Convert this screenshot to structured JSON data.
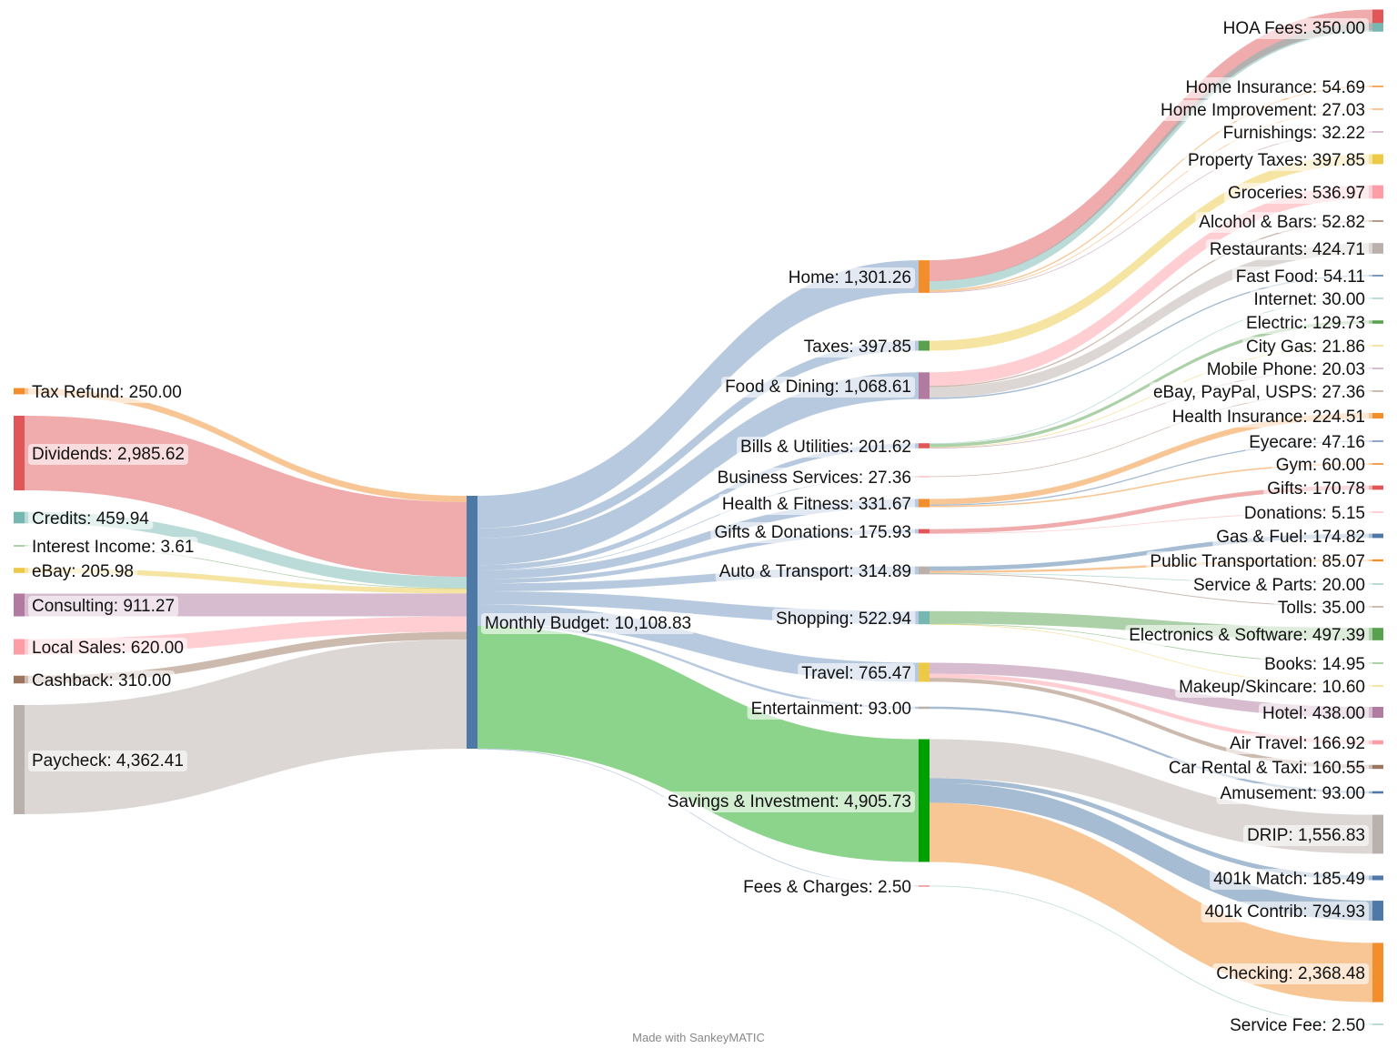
{
  "footer": {
    "credit": "Made with SankeyMATIC"
  },
  "flow_opacity": 0.5,
  "nodes": [
    {
      "id": "tax_refund",
      "name": "Tax Refund",
      "value": 250.0,
      "color": "#f28e2b",
      "col": 0
    },
    {
      "id": "dividends",
      "name": "Dividends",
      "value": 2985.62,
      "color": "#e15759",
      "col": 0
    },
    {
      "id": "credits",
      "name": "Credits",
      "value": 459.94,
      "color": "#76b7b2",
      "col": 0
    },
    {
      "id": "interest",
      "name": "Interest Income",
      "value": 3.61,
      "color": "#59a14f",
      "col": 0
    },
    {
      "id": "ebay",
      "name": "eBay",
      "value": 205.98,
      "color": "#edc948",
      "col": 0
    },
    {
      "id": "consulting",
      "name": "Consulting",
      "value": 911.27,
      "color": "#b07aa1",
      "col": 0
    },
    {
      "id": "local_sales",
      "name": "Local Sales",
      "value": 620.0,
      "color": "#ff9da7",
      "col": 0
    },
    {
      "id": "cashback",
      "name": "Cashback",
      "value": 310.0,
      "color": "#9c755f",
      "col": 0
    },
    {
      "id": "paycheck",
      "name": "Paycheck",
      "value": 4362.41,
      "color": "#bab0ac",
      "col": 0
    },
    {
      "id": "budget",
      "name": "Monthly Budget",
      "value": 10108.83,
      "color": "#4e79a7",
      "col": 1
    },
    {
      "id": "home",
      "name": "Home",
      "value": 1301.26,
      "color": "#f28e2b",
      "col": 2
    },
    {
      "id": "taxes",
      "name": "Taxes",
      "value": 397.85,
      "color": "#59a14f",
      "col": 2
    },
    {
      "id": "food",
      "name": "Food & Dining",
      "value": 1068.61,
      "color": "#b07aa1",
      "col": 2
    },
    {
      "id": "bills",
      "name": "Bills & Utilities",
      "value": 201.62,
      "color": "#e15759",
      "col": 2
    },
    {
      "id": "business",
      "name": "Business Services",
      "value": 27.36,
      "color": "#ff9da7",
      "col": 2
    },
    {
      "id": "health",
      "name": "Health & Fitness",
      "value": 331.67,
      "color": "#f28e2b",
      "col": 2
    },
    {
      "id": "gifts_don",
      "name": "Gifts & Donations",
      "value": 175.93,
      "color": "#e15759",
      "col": 2
    },
    {
      "id": "auto",
      "name": "Auto & Transport",
      "value": 314.89,
      "color": "#bab0ac",
      "col": 2
    },
    {
      "id": "shopping",
      "name": "Shopping",
      "value": 522.94,
      "color": "#76b7b2",
      "col": 2
    },
    {
      "id": "travel",
      "name": "Travel",
      "value": 765.47,
      "color": "#edc948",
      "col": 2
    },
    {
      "id": "entertainment",
      "name": "Entertainment",
      "value": 93.0,
      "color": "#bab0ac",
      "col": 2
    },
    {
      "id": "savings",
      "name": "Savings & Investment",
      "value": 4905.73,
      "color": "#00a000",
      "col": 2
    },
    {
      "id": "fees",
      "name": "Fees & Charges",
      "value": 2.5,
      "color": "#e15759",
      "col": 2
    },
    {
      "id": "home_top",
      "name": "",
      "value": 837.32,
      "color": "#e15759",
      "col": 3
    },
    {
      "id": "hoa",
      "name": "HOA Fees",
      "value": 350.0,
      "color": "#76b7b2",
      "col": 3
    },
    {
      "id": "home_ins",
      "name": "Home Insurance",
      "value": 54.69,
      "color": "#f28e2b",
      "col": 3
    },
    {
      "id": "home_impr",
      "name": "Home Improvement",
      "value": 27.03,
      "color": "#f28e2b",
      "col": 3
    },
    {
      "id": "furnishings",
      "name": "Furnishings",
      "value": 32.22,
      "color": "#b07aa1",
      "col": 3
    },
    {
      "id": "prop_tax",
      "name": "Property Taxes",
      "value": 397.85,
      "color": "#edc948",
      "col": 3
    },
    {
      "id": "groceries",
      "name": "Groceries",
      "value": 536.97,
      "color": "#ff9da7",
      "col": 3
    },
    {
      "id": "alcohol",
      "name": "Alcohol & Bars",
      "value": 52.82,
      "color": "#9c755f",
      "col": 3
    },
    {
      "id": "restaurants",
      "name": "Restaurants",
      "value": 424.71,
      "color": "#bab0ac",
      "col": 3
    },
    {
      "id": "fast_food",
      "name": "Fast Food",
      "value": 54.11,
      "color": "#4e79a7",
      "col": 3
    },
    {
      "id": "internet",
      "name": "Internet",
      "value": 30.0,
      "color": "#76b7b2",
      "col": 3
    },
    {
      "id": "electric",
      "name": "Electric",
      "value": 129.73,
      "color": "#59a14f",
      "col": 3
    },
    {
      "id": "city_gas",
      "name": "City Gas",
      "value": 21.86,
      "color": "#edc948",
      "col": 3
    },
    {
      "id": "mobile",
      "name": "Mobile Phone",
      "value": 20.03,
      "color": "#b07aa1",
      "col": 3
    },
    {
      "id": "ebay_paypal",
      "name": "eBay, PayPal, USPS",
      "value": 27.36,
      "color": "#9c755f",
      "col": 3
    },
    {
      "id": "health_ins",
      "name": "Health Insurance",
      "value": 224.51,
      "color": "#f28e2b",
      "col": 3
    },
    {
      "id": "eyecare",
      "name": "Eyecare",
      "value": 47.16,
      "color": "#4e79a7",
      "col": 3
    },
    {
      "id": "gym",
      "name": "Gym",
      "value": 60.0,
      "color": "#f28e2b",
      "col": 3
    },
    {
      "id": "gifts",
      "name": "Gifts",
      "value": 170.78,
      "color": "#e15759",
      "col": 3
    },
    {
      "id": "donations",
      "name": "Donations",
      "value": 5.15,
      "color": "#ff9da7",
      "col": 3
    },
    {
      "id": "gas_fuel",
      "name": "Gas & Fuel",
      "value": 174.82,
      "color": "#4e79a7",
      "col": 3
    },
    {
      "id": "public_trans",
      "name": "Public Transportation",
      "value": 85.07,
      "color": "#f28e2b",
      "col": 3
    },
    {
      "id": "service_parts",
      "name": "Service & Parts",
      "value": 20.0,
      "color": "#76b7b2",
      "col": 3
    },
    {
      "id": "tolls",
      "name": "Tolls",
      "value": 35.0,
      "color": "#9c755f",
      "col": 3
    },
    {
      "id": "electronics",
      "name": "Electronics & Software",
      "value": 497.39,
      "color": "#59a14f",
      "col": 3
    },
    {
      "id": "books",
      "name": "Books",
      "value": 14.95,
      "color": "#59a14f",
      "col": 3
    },
    {
      "id": "makeup",
      "name": "Makeup/Skincare",
      "value": 10.6,
      "color": "#edc948",
      "col": 3
    },
    {
      "id": "hotel",
      "name": "Hotel",
      "value": 438.0,
      "color": "#b07aa1",
      "col": 3
    },
    {
      "id": "air_travel",
      "name": "Air Travel",
      "value": 166.92,
      "color": "#ff9da7",
      "col": 3
    },
    {
      "id": "car_rental",
      "name": "Car Rental & Taxi",
      "value": 160.55,
      "color": "#9c755f",
      "col": 3
    },
    {
      "id": "amusement",
      "name": "Amusement",
      "value": 93.0,
      "color": "#4e79a7",
      "col": 3
    },
    {
      "id": "drip",
      "name": "DRIP",
      "value": 1556.83,
      "color": "#bab0ac",
      "col": 3
    },
    {
      "id": "k401_match",
      "name": "401k Match",
      "value": 185.49,
      "color": "#4e79a7",
      "col": 3
    },
    {
      "id": "k401_contrib",
      "name": "401k Contrib",
      "value": 794.93,
      "color": "#4e79a7",
      "col": 3
    },
    {
      "id": "checking",
      "name": "Checking",
      "value": 2368.48,
      "color": "#f28e2b",
      "col": 3
    },
    {
      "id": "service_fee",
      "name": "Service Fee",
      "value": 2.5,
      "color": "#76b7b2",
      "col": 3
    }
  ],
  "links": [
    [
      "tax_refund",
      "budget",
      250.0
    ],
    [
      "dividends",
      "budget",
      2985.62
    ],
    [
      "credits",
      "budget",
      459.94
    ],
    [
      "interest",
      "budget",
      3.61
    ],
    [
      "ebay",
      "budget",
      205.98
    ],
    [
      "consulting",
      "budget",
      911.27
    ],
    [
      "local_sales",
      "budget",
      620.0
    ],
    [
      "cashback",
      "budget",
      310.0
    ],
    [
      "paycheck",
      "budget",
      4362.41
    ],
    [
      "budget",
      "home",
      1301.26
    ],
    [
      "budget",
      "taxes",
      397.85
    ],
    [
      "budget",
      "food",
      1068.61
    ],
    [
      "budget",
      "bills",
      201.62
    ],
    [
      "budget",
      "business",
      27.36
    ],
    [
      "budget",
      "health",
      331.67
    ],
    [
      "budget",
      "gifts_don",
      175.93
    ],
    [
      "budget",
      "auto",
      314.89
    ],
    [
      "budget",
      "shopping",
      522.94
    ],
    [
      "budget",
      "travel",
      765.47
    ],
    [
      "budget",
      "entertainment",
      93.0
    ],
    [
      "budget",
      "savings",
      4905.73
    ],
    [
      "budget",
      "fees",
      2.5
    ],
    [
      "home",
      "home_top",
      837.32
    ],
    [
      "home",
      "hoa",
      350.0
    ],
    [
      "home",
      "home_ins",
      54.69
    ],
    [
      "home",
      "home_impr",
      27.03
    ],
    [
      "home",
      "furnishings",
      32.22
    ],
    [
      "taxes",
      "prop_tax",
      397.85
    ],
    [
      "food",
      "groceries",
      536.97
    ],
    [
      "food",
      "alcohol",
      52.82
    ],
    [
      "food",
      "restaurants",
      424.71
    ],
    [
      "food",
      "fast_food",
      54.11
    ],
    [
      "bills",
      "internet",
      30.0
    ],
    [
      "bills",
      "electric",
      129.73
    ],
    [
      "bills",
      "city_gas",
      21.86
    ],
    [
      "bills",
      "mobile",
      20.03
    ],
    [
      "business",
      "ebay_paypal",
      27.36
    ],
    [
      "health",
      "health_ins",
      224.51
    ],
    [
      "health",
      "eyecare",
      47.16
    ],
    [
      "health",
      "gym",
      60.0
    ],
    [
      "gifts_don",
      "gifts",
      170.78
    ],
    [
      "gifts_don",
      "donations",
      5.15
    ],
    [
      "auto",
      "gas_fuel",
      174.82
    ],
    [
      "auto",
      "public_trans",
      85.07
    ],
    [
      "auto",
      "service_parts",
      20.0
    ],
    [
      "auto",
      "tolls",
      35.0
    ],
    [
      "shopping",
      "electronics",
      497.39
    ],
    [
      "shopping",
      "books",
      14.95
    ],
    [
      "shopping",
      "makeup",
      10.6
    ],
    [
      "travel",
      "hotel",
      438.0
    ],
    [
      "travel",
      "air_travel",
      166.92
    ],
    [
      "travel",
      "car_rental",
      160.55
    ],
    [
      "entertainment",
      "amusement",
      93.0
    ],
    [
      "savings",
      "drip",
      1556.83
    ],
    [
      "savings",
      "k401_match",
      185.49
    ],
    [
      "savings",
      "k401_contrib",
      794.93
    ],
    [
      "savings",
      "checking",
      2368.48
    ],
    [
      "fees",
      "service_fee",
      2.5
    ]
  ]
}
